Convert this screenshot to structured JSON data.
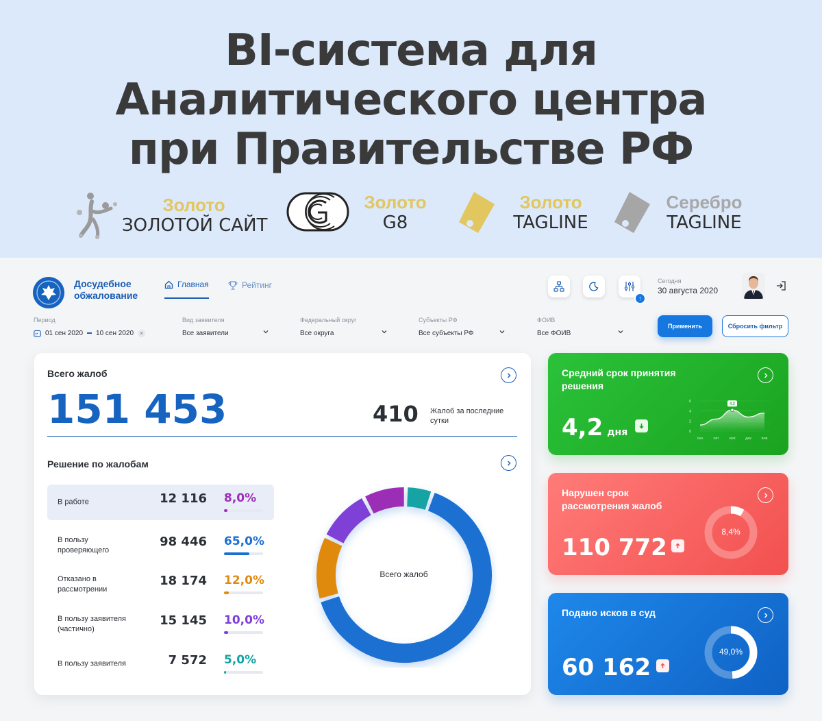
{
  "banner": {
    "title_lines": [
      "BI-система для",
      "Аналитического центра",
      "при Правительстве РФ"
    ],
    "awards": [
      {
        "grade": "Золото",
        "name": "ЗОЛОТОЙ САЙТ",
        "icon": "golden-site-figure-icon"
      },
      {
        "grade": "Золото",
        "name": "G8",
        "icon": "g8-logo-icon"
      },
      {
        "grade": "Золото",
        "name": "TAGLINE",
        "icon": "tag-gold-icon"
      },
      {
        "grade": "Серебро",
        "name": "TAGLINE",
        "icon": "tag-silver-icon"
      }
    ],
    "colors": {
      "background": "#dbe9fb",
      "gold": "#e2c660",
      "silver": "#a8a8a8"
    }
  },
  "app": {
    "logo_text": "Досудебное обжалование",
    "nav": [
      {
        "label": "Главная",
        "icon": "home-icon",
        "active": true
      },
      {
        "label": "Рейтинг",
        "icon": "trophy-icon",
        "active": false
      }
    ],
    "tools": [
      "structure-icon",
      "moon-icon",
      "sliders-icon"
    ],
    "today_label": "Сегодня",
    "today_date": "30 августа 2020",
    "logout_icon": "logout-icon"
  },
  "filters": [
    {
      "label": "Период",
      "value": "01 сен 2020",
      "value_to": "10 сен 2020",
      "type": "date-range"
    },
    {
      "label": "Вид заявителя",
      "value": "Все заявители",
      "type": "select"
    },
    {
      "label": "Федеральный округ",
      "value": "Все округа",
      "type": "select"
    },
    {
      "label": "Субъекты РФ",
      "value": "Все субъекты РФ",
      "type": "select"
    },
    {
      "label": "ФОИВ",
      "value": "Все ФОИВ",
      "type": "select"
    }
  ],
  "buttons": {
    "apply": "Применить",
    "reset": "Сбросить фильтр"
  },
  "summary": {
    "total_label": "Всего жалоб",
    "total_value": "151 453",
    "day_value": "410",
    "day_caption": "Жалоб за последние сутки"
  },
  "decisions": {
    "label": "Решение по жалобам",
    "rows": [
      {
        "label": "В работе",
        "count": "12 116",
        "percent": "8,0%",
        "fraction": 0.08,
        "color": "#9b2fb5"
      },
      {
        "label": "В пользу проверяющего",
        "count": "98 446",
        "percent": "65,0%",
        "fraction": 0.65,
        "color": "#1a6fd1"
      },
      {
        "label": "Отказано в рассмотрении",
        "count": "18 174",
        "percent": "12,0%",
        "fraction": 0.12,
        "color": "#e08a10"
      },
      {
        "label": "В пользу заявителя (частично)",
        "count": "15 145",
        "percent": "10,0%",
        "fraction": 0.1,
        "color": "#7e3fd6"
      },
      {
        "label": "В пользу заявителя",
        "count": "7 572",
        "percent": "5,0%",
        "fraction": 0.05,
        "color": "#14a3a3"
      }
    ],
    "donut_center": "Всего жалоб"
  },
  "cards": {
    "avg_time": {
      "title": "Средний срок принятия решения",
      "value": "4,2",
      "unit": "дня",
      "trend": "down",
      "colors": {
        "from": "#2bc23a",
        "to": "#1aa31f"
      },
      "chart_data": {
        "type": "area",
        "x": [
          "сен",
          "окт",
          "ноя",
          "дек",
          "янв"
        ],
        "values": [
          1.2,
          2.4,
          4.2,
          2.8,
          3.6
        ],
        "highlight": {
          "x": "ноя",
          "label": "4,2"
        },
        "yticks": [
          "6",
          "4",
          "2",
          "0"
        ],
        "ylim": [
          0,
          6
        ]
      }
    },
    "violated": {
      "title": "Нарушен срок рассмотрения жалоб",
      "value": "110 772",
      "trend": "up",
      "ring_label": "8,4%",
      "ring_fraction": 0.084,
      "colors": {
        "from": "#ff7b78",
        "to": "#f2504f"
      }
    },
    "lawsuits": {
      "title": "Подано исков в суд",
      "value": "60 162",
      "trend": "up",
      "ring_label": "49,0%",
      "ring_fraction": 0.49,
      "colors": {
        "from": "#1e88ea",
        "to": "#0f62c4"
      }
    }
  }
}
